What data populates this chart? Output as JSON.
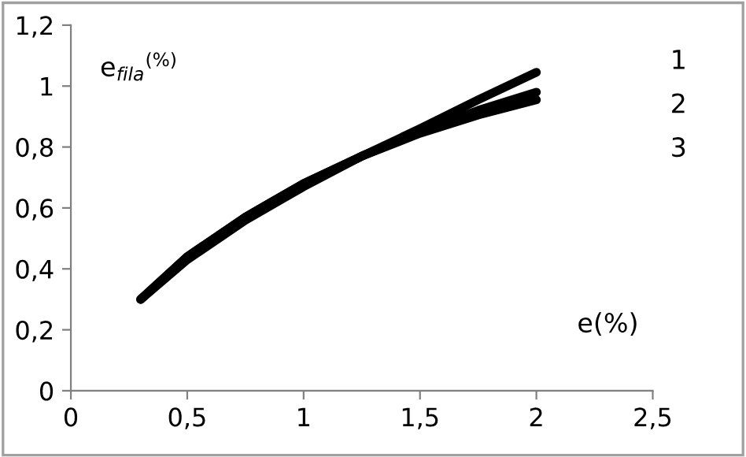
{
  "chart_data": {
    "type": "line",
    "ylabel": "e$_{fila}$$^{(%)}$",
    "xlabel": "e(%)",
    "series": [
      {
        "name": "1",
        "color": "#000000",
        "x": [
          0.3,
          0.5,
          0.75,
          1,
          1.25,
          1.5,
          1.75,
          2
        ],
        "values": [
          0.3,
          0.43,
          0.56,
          0.67,
          0.77,
          0.86,
          0.955,
          1.045
        ]
      },
      {
        "name": "2",
        "color": "#000000",
        "x": [
          0.3,
          0.5,
          0.75,
          1,
          1.25,
          1.5,
          1.75,
          2
        ],
        "values": [
          0.3,
          0.44,
          0.57,
          0.68,
          0.77,
          0.85,
          0.92,
          0.98
        ]
      },
      {
        "name": "3",
        "color": "#000000",
        "x": [
          0.3,
          0.5,
          0.75,
          1,
          1.25,
          1.5,
          1.75,
          2
        ],
        "values": [
          0.3,
          0.44,
          0.57,
          0.68,
          0.77,
          0.845,
          0.905,
          0.955
        ]
      }
    ],
    "xlim": [
      0,
      2.5
    ],
    "ylim": [
      0,
      1.2
    ],
    "xticks": [
      0,
      {
        "value": 0.5,
        "label": "0,5"
      },
      1,
      {
        "value": 1.5,
        "label": "1,5"
      },
      2,
      {
        "value": 2.5,
        "label": "2,5"
      }
    ],
    "yticks": [
      0,
      {
        "value": 0.2,
        "label": "0,2"
      },
      {
        "value": 0.4,
        "label": "0,4"
      },
      {
        "value": 0.6,
        "label": "0,6"
      },
      {
        "value": 0.8,
        "label": "0,8"
      },
      1,
      {
        "value": 1.2,
        "label": "1,2"
      }
    ],
    "grid": false,
    "legend": false,
    "marker": "none",
    "line_style": "solid"
  }
}
